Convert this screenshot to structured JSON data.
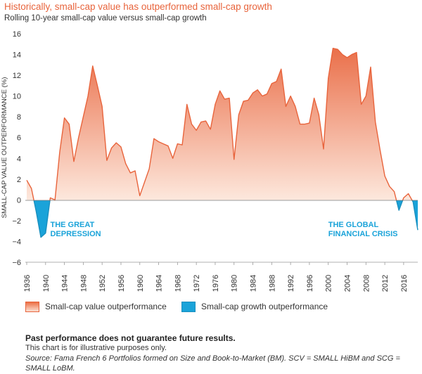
{
  "header": {
    "title": "Historically, small-cap value has outperformed small-cap growth",
    "subtitle": "Rolling 10-year small-cap value versus small-cap growth"
  },
  "chart_data": {
    "type": "area",
    "ylabel": "SMALL-CAP VALUE OUTPERFORMANCE (%)",
    "xlabel": "",
    "ylim": [
      -6,
      16
    ],
    "xlim": [
      1936,
      2019
    ],
    "yticks": [
      -6,
      -4,
      -2,
      0,
      2,
      4,
      6,
      8,
      10,
      12,
      14,
      16
    ],
    "xticks": [
      1936,
      1940,
      1944,
      1948,
      1952,
      1956,
      1960,
      1964,
      1968,
      1972,
      1976,
      1980,
      1984,
      1988,
      1992,
      1996,
      2000,
      2004,
      2008,
      2012,
      2016
    ],
    "grid": false,
    "legend_position": "bottom",
    "colors": {
      "positive": "#e8643c",
      "negative": "#1aa3d9"
    },
    "series": [
      {
        "name": "Small-cap value outperformance",
        "x": [
          1936,
          1937,
          1938,
          1939,
          1940,
          1941,
          1942,
          1943,
          1944,
          1945,
          1946,
          1947,
          1948,
          1949,
          1950,
          1951,
          1952,
          1953,
          1954,
          1955,
          1956,
          1957,
          1958,
          1959,
          1960,
          1961,
          1962,
          1963,
          1964,
          1965,
          1966,
          1967,
          1968,
          1969,
          1970,
          1971,
          1972,
          1973,
          1974,
          1975,
          1976,
          1977,
          1978,
          1979,
          1980,
          1981,
          1982,
          1983,
          1984,
          1985,
          1986,
          1987,
          1988,
          1989,
          1990,
          1991,
          1992,
          1993,
          1994,
          1995,
          1996,
          1997,
          1998,
          1999,
          2000,
          2001,
          2002,
          2003,
          2004,
          2005,
          2006,
          2007,
          2008,
          2009,
          2010,
          2011,
          2012,
          2013,
          2014,
          2015,
          2016,
          2017,
          2018,
          2019
        ],
        "values": [
          1.9,
          1.1,
          -1.1,
          -3.6,
          -3.2,
          0.2,
          0.0,
          4.6,
          7.9,
          7.3,
          3.7,
          6.0,
          8.0,
          10.0,
          12.9,
          11.0,
          9.0,
          3.8,
          5.0,
          5.5,
          5.1,
          3.5,
          2.6,
          2.8,
          0.4,
          1.7,
          3.0,
          5.9,
          5.6,
          5.4,
          5.2,
          4.0,
          5.4,
          5.3,
          9.2,
          7.3,
          6.7,
          7.5,
          7.6,
          6.8,
          9.2,
          10.5,
          9.7,
          9.8,
          3.9,
          8.2,
          9.5,
          9.6,
          10.3,
          10.6,
          10.0,
          10.2,
          11.2,
          11.4,
          12.6,
          9.0,
          10.0,
          9.0,
          7.3,
          7.3,
          7.4,
          9.8,
          8.2,
          4.9,
          11.7,
          14.6,
          14.5,
          14.0,
          13.7,
          14.0,
          14.2,
          9.2,
          10.0,
          12.8,
          7.5,
          4.8,
          2.3,
          1.3,
          0.8,
          -1.0,
          0.2,
          0.6,
          -0.2,
          -2.9
        ]
      }
    ],
    "annotations": [
      {
        "text": "THE GREAT DEPRESSION",
        "lines": [
          "THE GREAT",
          "DEPRESSION"
        ],
        "x": 1941,
        "y": -2.6
      },
      {
        "text": "THE GLOBAL FINANCIAL CRISIS",
        "lines": [
          "THE GLOBAL",
          "FINANCIAL CRISIS"
        ],
        "x": 2000,
        "y": -2.6
      }
    ]
  },
  "legend": {
    "value_label": "Small-cap value outperformance",
    "growth_label": "Small-cap growth outperformance"
  },
  "notes": {
    "disclaimer_bold": "Past performance does not guarantee future results.",
    "disclaimer": "This chart is for illustrative purposes only.",
    "source": "Source: Fama French 6 Portfolios formed on Size and Book-to-Market (BM). SCV = SMALL HiBM and SCG = SMALL LoBM."
  }
}
